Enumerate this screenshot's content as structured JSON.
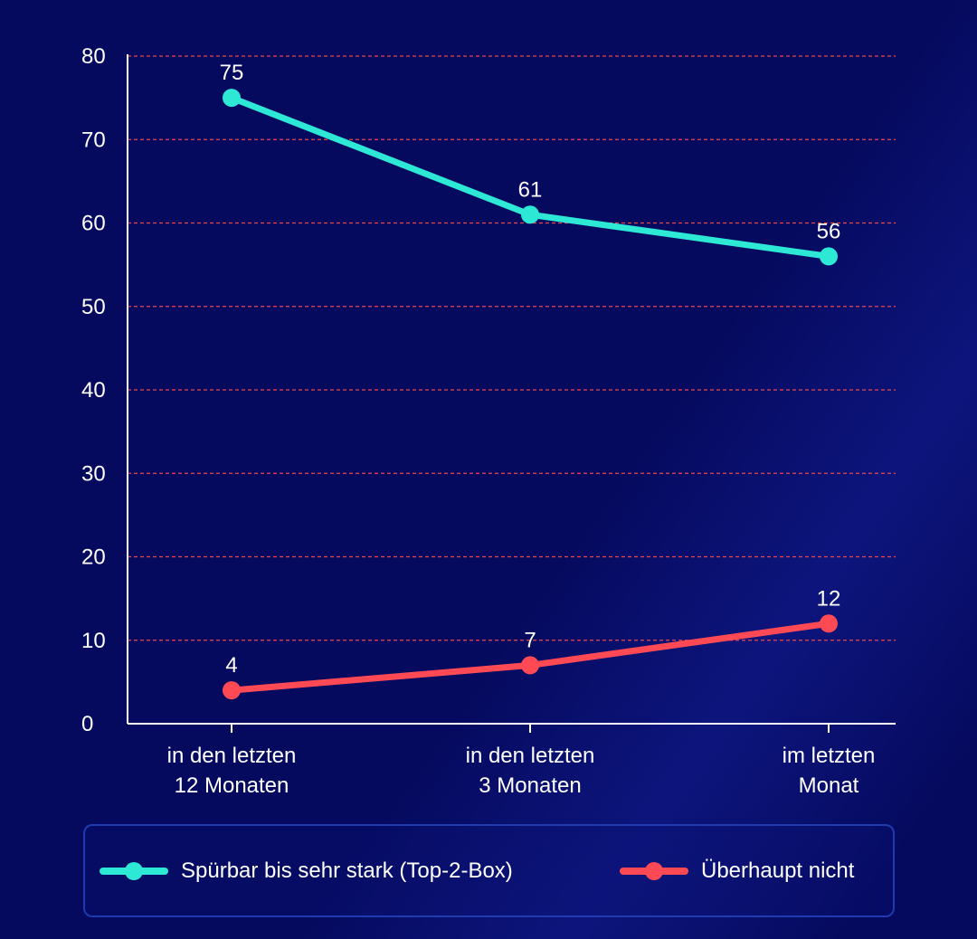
{
  "chart_data": {
    "type": "line",
    "categories": [
      "in den letzten 12 Monaten",
      "in den letzten 3 Monaten",
      "im letzten Monat"
    ],
    "category_lines": [
      [
        "in den letzten",
        "12 Monaten"
      ],
      [
        "in den letzten",
        "3 Monaten"
      ],
      [
        "im letzten",
        "Monat"
      ]
    ],
    "series": [
      {
        "name": "Spürbar bis sehr stark (Top-2-Box)",
        "values": [
          75,
          61,
          56
        ],
        "color": "#2ee8d6"
      },
      {
        "name": "Überhaupt nicht",
        "values": [
          4,
          7,
          12
        ],
        "color": "#ff4a55"
      }
    ],
    "ylim": [
      0,
      80
    ],
    "yticks": [
      0,
      10,
      20,
      30,
      40,
      50,
      60,
      70,
      80
    ],
    "grid": true,
    "grid_color": "#e8474f",
    "axis_color": "#ffffff",
    "background": "#050a5e",
    "legend_position": "bottom"
  }
}
